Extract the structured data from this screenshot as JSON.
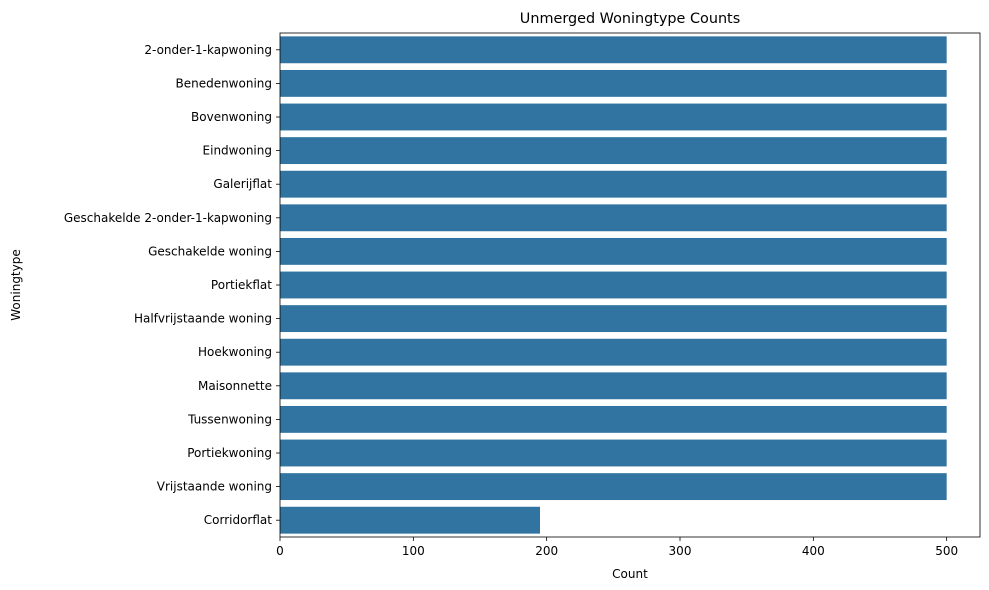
{
  "chart_data": {
    "type": "bar",
    "orientation": "horizontal",
    "title": "Unmerged Woningtype Counts",
    "xlabel": "Count",
    "ylabel": "Woningtype",
    "categories": [
      "2-onder-1-kapwoning",
      "Benedenwoning",
      "Bovenwoning",
      "Eindwoning",
      "Galerijflat",
      "Geschakelde 2-onder-1-kapwoning",
      "Geschakelde woning",
      "Portiekflat",
      "Halfvrijstaande woning",
      "Hoekwoning",
      "Maisonnette",
      "Tussenwoning",
      "Portiekwoning",
      "Vrijstaande woning",
      "Corridorflat"
    ],
    "values": [
      500,
      500,
      500,
      500,
      500,
      500,
      500,
      500,
      500,
      500,
      500,
      500,
      500,
      500,
      195
    ],
    "xlim": [
      0,
      525
    ],
    "xticks": [
      0,
      100,
      200,
      300,
      400,
      500
    ],
    "grid": false,
    "bar_color": "#3274a1"
  }
}
